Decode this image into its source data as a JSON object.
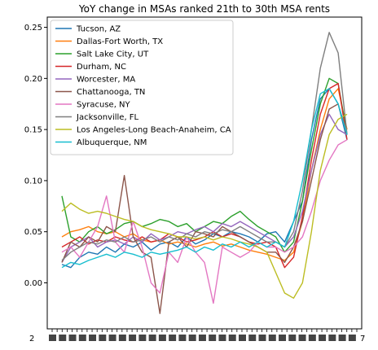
{
  "chart_data": {
    "type": "line",
    "title": "YoY change in MSAs ranked 21th to 30th MSA rents",
    "xlabel": "",
    "ylabel": "",
    "ylim": [
      -0.045,
      0.26
    ],
    "yticks": [
      0.0,
      0.05,
      0.1,
      0.15,
      0.2,
      0.25
    ],
    "ytick_labels": [
      "0.00",
      "0.05",
      "0.10",
      "0.15",
      "0.20",
      "0.25"
    ],
    "x_tick_note": "overlapping date tick labels, illegible",
    "x_tick_edge_labels": [
      "2",
      "7"
    ],
    "x": [
      0,
      8,
      16,
      24,
      32,
      40,
      48,
      56,
      64,
      72,
      80,
      88,
      96,
      104,
      112,
      120,
      128,
      136,
      144,
      152,
      160,
      168,
      176,
      184,
      192,
      200,
      208,
      216,
      224,
      232,
      240,
      248,
      256
    ],
    "legend_position": "upper-left",
    "series": [
      {
        "name": "Tucson, AZ",
        "color": "#1f77b4",
        "values": [
          0.018,
          0.015,
          0.025,
          0.03,
          0.028,
          0.035,
          0.03,
          0.038,
          0.035,
          0.04,
          0.032,
          0.038,
          0.04,
          0.035,
          0.045,
          0.038,
          0.042,
          0.048,
          0.045,
          0.05,
          0.048,
          0.045,
          0.04,
          0.048,
          0.05,
          0.04,
          0.06,
          0.08,
          0.14,
          0.18,
          0.19,
          0.175,
          0.14
        ]
      },
      {
        "name": "Dallas-Fort Worth, TX",
        "color": "#ff7f0e",
        "values": [
          0.045,
          0.05,
          0.052,
          0.055,
          0.05,
          0.048,
          0.05,
          0.045,
          0.048,
          0.042,
          0.04,
          0.042,
          0.038,
          0.04,
          0.038,
          0.035,
          0.038,
          0.04,
          0.036,
          0.038,
          0.035,
          0.032,
          0.03,
          0.028,
          0.025,
          0.022,
          0.03,
          0.06,
          0.11,
          0.15,
          0.18,
          0.19,
          0.15
        ]
      },
      {
        "name": "Salt Lake City, UT",
        "color": "#2ca02c",
        "values": [
          0.085,
          0.045,
          0.04,
          0.05,
          0.055,
          0.048,
          0.052,
          0.058,
          0.06,
          0.055,
          0.058,
          0.062,
          0.06,
          0.055,
          0.058,
          0.05,
          0.055,
          0.06,
          0.058,
          0.065,
          0.07,
          0.062,
          0.055,
          0.05,
          0.045,
          0.03,
          0.04,
          0.08,
          0.13,
          0.175,
          0.2,
          0.195,
          0.145
        ]
      },
      {
        "name": "Durham, NC",
        "color": "#d62728",
        "values": [
          0.035,
          0.04,
          0.045,
          0.038,
          0.042,
          0.04,
          0.045,
          0.042,
          0.04,
          0.045,
          0.04,
          0.042,
          0.048,
          0.045,
          0.04,
          0.042,
          0.045,
          0.05,
          0.045,
          0.048,
          0.045,
          0.04,
          0.038,
          0.04,
          0.035,
          0.015,
          0.025,
          0.065,
          0.12,
          0.165,
          0.19,
          0.195,
          0.14
        ]
      },
      {
        "name": "Worcester, MA",
        "color": "#9467bd",
        "values": [
          0.02,
          0.035,
          0.04,
          0.045,
          0.035,
          0.04,
          0.042,
          0.038,
          0.045,
          0.04,
          0.048,
          0.042,
          0.045,
          0.05,
          0.048,
          0.052,
          0.055,
          0.05,
          0.058,
          0.055,
          0.06,
          0.055,
          0.05,
          0.045,
          0.04,
          0.035,
          0.045,
          0.07,
          0.11,
          0.145,
          0.165,
          0.15,
          0.145
        ]
      },
      {
        "name": "Chattanooga, TN",
        "color": "#8c564b",
        "values": [
          0.02,
          0.04,
          0.035,
          0.045,
          0.04,
          0.055,
          0.05,
          0.105,
          0.045,
          0.03,
          0.025,
          -0.03,
          0.04,
          0.045,
          0.035,
          0.05,
          0.048,
          0.045,
          0.055,
          0.05,
          0.045,
          0.04,
          0.035,
          0.03,
          0.03,
          0.02,
          0.035,
          0.06,
          0.1,
          0.14,
          0.17,
          0.175,
          0.145
        ]
      },
      {
        "name": "Syracuse, NY",
        "color": "#e377c2",
        "values": [
          0.03,
          0.035,
          0.025,
          0.04,
          0.055,
          0.085,
          0.04,
          0.03,
          0.06,
          0.035,
          0.0,
          -0.01,
          0.03,
          0.02,
          0.045,
          0.03,
          0.02,
          -0.02,
          0.035,
          0.03,
          0.025,
          0.03,
          0.04,
          0.035,
          0.035,
          0.03,
          0.035,
          0.045,
          0.07,
          0.1,
          0.12,
          0.135,
          0.14
        ]
      },
      {
        "name": "Jacksonville, FL",
        "color": "#7f7f7f",
        "values": [
          0.022,
          0.03,
          0.035,
          0.04,
          0.038,
          0.042,
          0.04,
          0.045,
          0.04,
          0.042,
          0.045,
          0.04,
          0.045,
          0.042,
          0.048,
          0.045,
          0.05,
          0.048,
          0.052,
          0.05,
          0.055,
          0.05,
          0.045,
          0.04,
          0.04,
          0.035,
          0.05,
          0.09,
          0.15,
          0.21,
          0.245,
          0.225,
          0.145
        ]
      },
      {
        "name": "Los Angeles-Long Beach-Anaheim, CA",
        "color": "#bcbd22",
        "values": [
          0.07,
          0.078,
          0.072,
          0.068,
          0.07,
          0.068,
          0.065,
          0.062,
          0.06,
          0.055,
          0.052,
          0.05,
          0.048,
          0.045,
          0.045,
          0.043,
          0.045,
          0.042,
          0.045,
          0.043,
          0.04,
          0.038,
          0.035,
          0.03,
          0.01,
          -0.01,
          -0.015,
          0.0,
          0.05,
          0.11,
          0.145,
          0.16,
          0.165
        ]
      },
      {
        "name": "Albuquerque, NM",
        "color": "#17becf",
        "values": [
          0.015,
          0.02,
          0.018,
          0.022,
          0.025,
          0.028,
          0.025,
          0.03,
          0.028,
          0.025,
          0.03,
          0.028,
          0.03,
          0.032,
          0.035,
          0.03,
          0.035,
          0.032,
          0.038,
          0.035,
          0.04,
          0.035,
          0.04,
          0.035,
          0.04,
          0.035,
          0.06,
          0.1,
          0.15,
          0.185,
          0.19,
          0.175,
          0.145
        ]
      }
    ]
  }
}
